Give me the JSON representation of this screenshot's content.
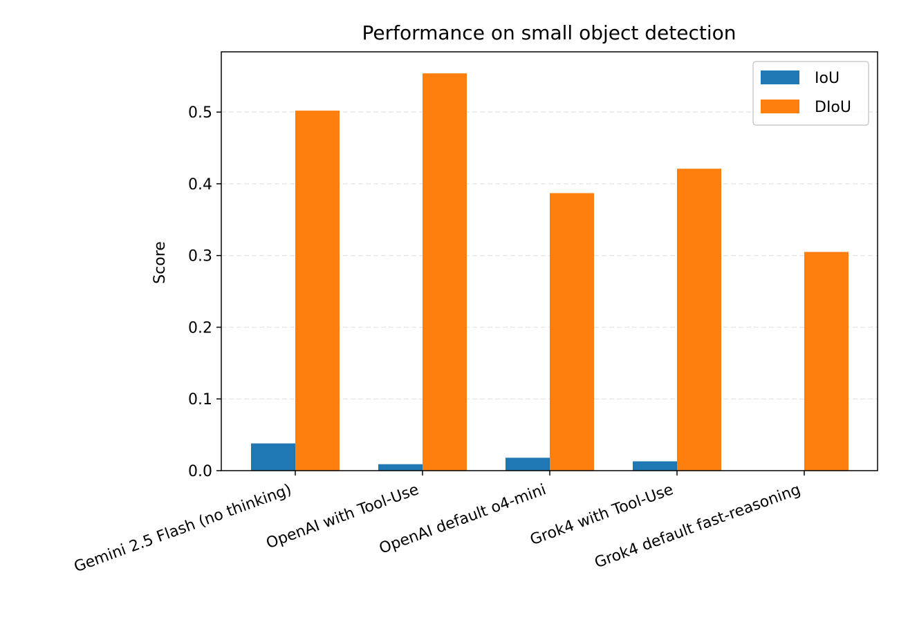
{
  "chart_data": {
    "type": "bar",
    "title": "Performance on small object detection",
    "xlabel": "",
    "ylabel": "Score",
    "categories": [
      "Gemini 2.5 Flash (no thinking)",
      "OpenAI with Tool-Use",
      "OpenAI default o4-mini",
      "Grok4 with Tool-Use",
      "Grok4 default fast-reasoning"
    ],
    "series": [
      {
        "name": "IoU",
        "color": "#1f77b4",
        "values": [
          0.038,
          0.009,
          0.018,
          0.013,
          0.0
        ]
      },
      {
        "name": "DIoU",
        "color": "#ff7f0e",
        "values": [
          0.502,
          0.554,
          0.387,
          0.421,
          0.305
        ]
      }
    ],
    "ylim": [
      0,
      0.584
    ],
    "yticks": [
      0.0,
      0.1,
      0.2,
      0.3,
      0.4,
      0.5
    ],
    "ytick_labels": [
      "0.0",
      "0.1",
      "0.2",
      "0.3",
      "0.4",
      "0.5"
    ],
    "grid": "y-dashed",
    "legend_position": "top-right"
  }
}
